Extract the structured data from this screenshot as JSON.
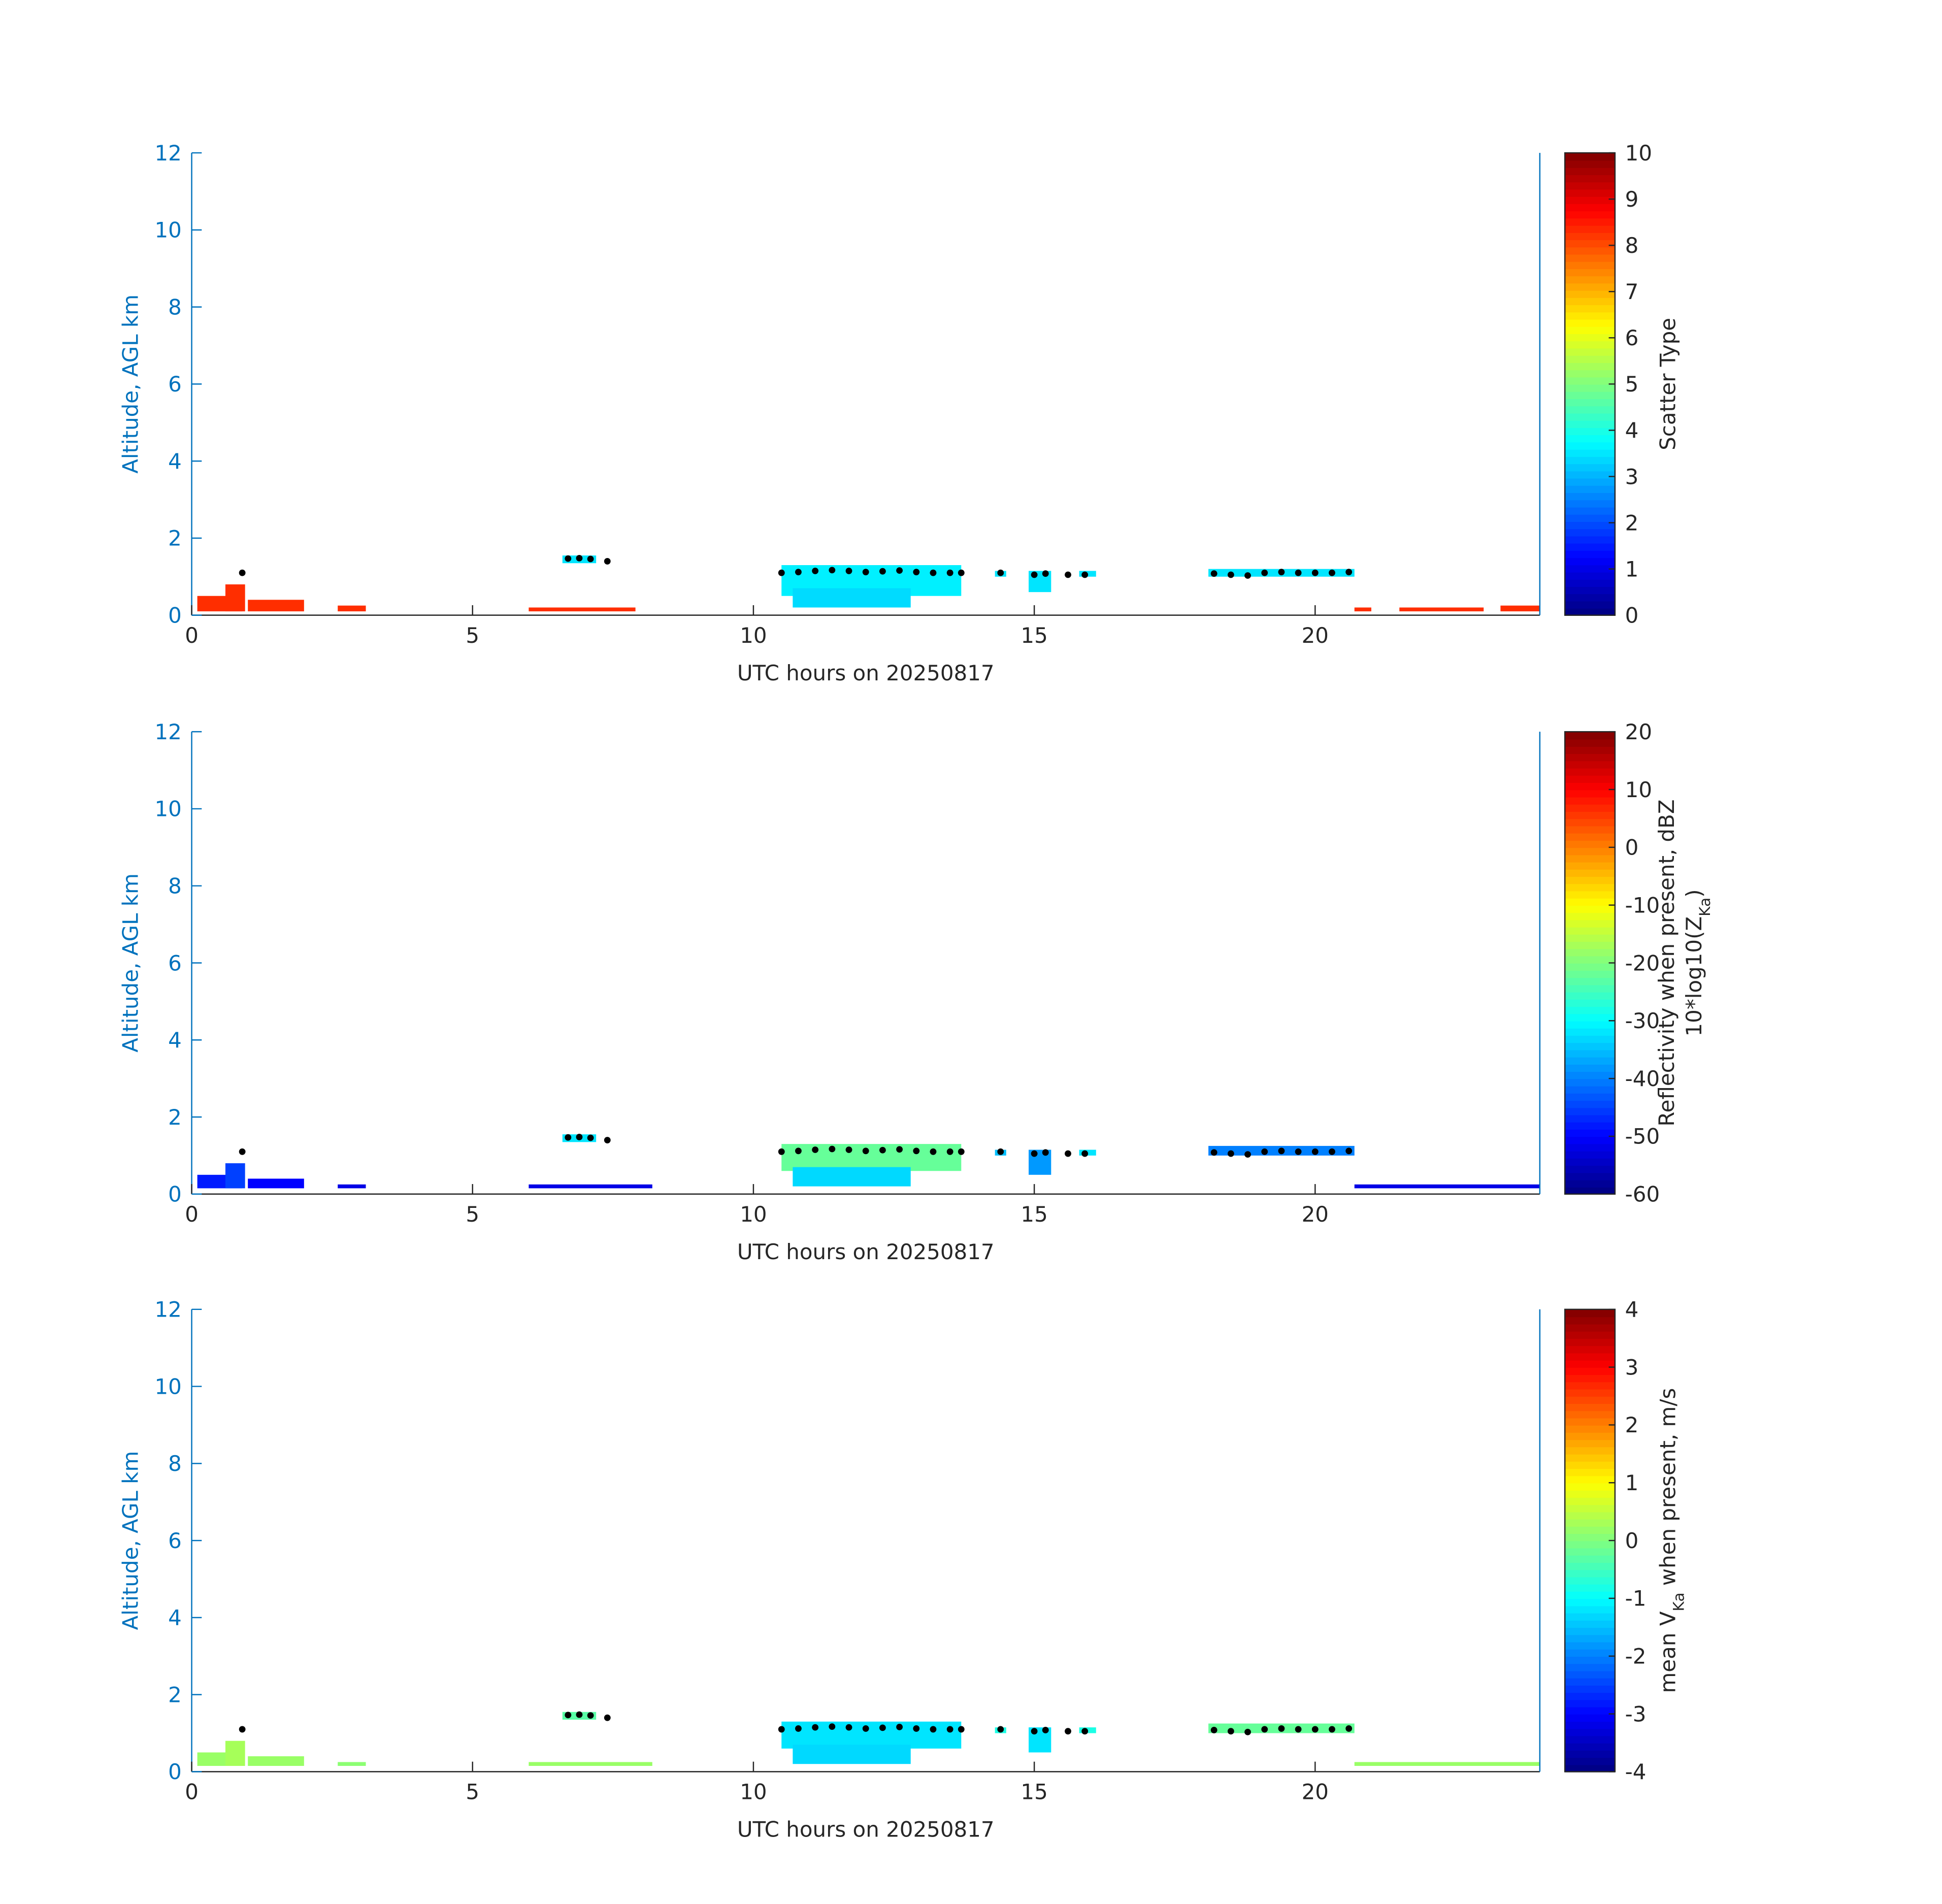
{
  "chart_data": [
    {
      "type": "heatmap",
      "xlabel": "UTC hours on 20250817",
      "ylabel": "Altitude, AGL km",
      "xlim": [
        0,
        24
      ],
      "xticks": [
        0,
        5,
        10,
        15,
        20
      ],
      "ylim": [
        0,
        12
      ],
      "yticks": [
        0,
        2,
        4,
        6,
        8,
        10,
        12
      ],
      "clim": [
        0,
        10
      ],
      "cticks": [
        0,
        1,
        2,
        3,
        4,
        5,
        6,
        7,
        8,
        9,
        10
      ],
      "colormap": "jet",
      "colorbar_label": [
        [
          "Scatter Type"
        ]
      ],
      "patches": [
        {
          "x": [
            0.1,
            0.9
          ],
          "y": [
            0.1,
            0.5
          ],
          "value": 8.3
        },
        {
          "x": [
            0.6,
            0.95
          ],
          "y": [
            0.1,
            0.8
          ],
          "value": 8.3
        },
        {
          "x": [
            1.0,
            2.0
          ],
          "y": [
            0.1,
            0.4
          ],
          "value": 8.3
        },
        {
          "x": [
            2.6,
            3.1
          ],
          "y": [
            0.1,
            0.25
          ],
          "value": 8.3
        },
        {
          "x": [
            6.0,
            7.9
          ],
          "y": [
            0.1,
            0.2
          ],
          "value": 8.3
        },
        {
          "x": [
            6.6,
            7.2
          ],
          "y": [
            1.35,
            1.55
          ],
          "value": 3.5
        },
        {
          "x": [
            10.5,
            13.7
          ],
          "y": [
            0.5,
            1.3
          ],
          "value": 3.6
        },
        {
          "x": [
            10.7,
            12.8
          ],
          "y": [
            0.2,
            0.7
          ],
          "value": 3.4
        },
        {
          "x": [
            14.3,
            14.5
          ],
          "y": [
            1.0,
            1.15
          ],
          "value": 3.5
        },
        {
          "x": [
            14.9,
            15.3
          ],
          "y": [
            0.6,
            1.15
          ],
          "value": 3.5
        },
        {
          "x": [
            15.8,
            16.1
          ],
          "y": [
            1.0,
            1.15
          ],
          "value": 3.5
        },
        {
          "x": [
            18.1,
            20.7
          ],
          "y": [
            1.0,
            1.2
          ],
          "value": 3.5
        },
        {
          "x": [
            20.7,
            21.0
          ],
          "y": [
            0.1,
            0.2
          ],
          "value": 8.3
        },
        {
          "x": [
            21.5,
            23.0
          ],
          "y": [
            0.1,
            0.2
          ],
          "value": 8.3
        },
        {
          "x": [
            23.3,
            24.0
          ],
          "y": [
            0.1,
            0.25
          ],
          "value": 8.3
        }
      ],
      "cloud_base": {
        "x": [
          0.9,
          6.7,
          6.9,
          7.1,
          7.4,
          10.5,
          10.8,
          11.1,
          11.4,
          11.7,
          12.0,
          12.3,
          12.6,
          12.9,
          13.2,
          13.5,
          13.7,
          14.4,
          15.0,
          15.2,
          15.6,
          15.9,
          18.2,
          18.5,
          18.8,
          19.1,
          19.4,
          19.7,
          20.0,
          20.3,
          20.6
        ],
        "values": [
          1.1,
          1.47,
          1.48,
          1.46,
          1.4,
          1.1,
          1.12,
          1.15,
          1.17,
          1.15,
          1.12,
          1.14,
          1.16,
          1.12,
          1.1,
          1.1,
          1.1,
          1.1,
          1.05,
          1.08,
          1.05,
          1.05,
          1.08,
          1.05,
          1.03,
          1.1,
          1.12,
          1.1,
          1.1,
          1.1,
          1.12
        ]
      }
    },
    {
      "type": "heatmap",
      "xlabel": "UTC hours on 20250817",
      "ylabel": "Altitude, AGL km",
      "xlim": [
        0,
        24
      ],
      "xticks": [
        0,
        5,
        10,
        15,
        20
      ],
      "ylim": [
        0,
        12
      ],
      "yticks": [
        0,
        2,
        4,
        6,
        8,
        10,
        12
      ],
      "clim": [
        -60,
        20
      ],
      "cticks": [
        -60,
        -50,
        -40,
        -30,
        -20,
        -10,
        0,
        10,
        20
      ],
      "colormap": "jet",
      "colorbar_label": [
        [
          "Reflectivity when present, dBZ"
        ],
        [
          "10*log10(Z",
          {
            "text": "Ka",
            "sub": true
          },
          ")"
        ]
      ],
      "patches": [
        {
          "x": [
            0.1,
            0.9
          ],
          "y": [
            0.15,
            0.5
          ],
          "value": -48
        },
        {
          "x": [
            0.6,
            0.95
          ],
          "y": [
            0.15,
            0.8
          ],
          "value": -45
        },
        {
          "x": [
            1.0,
            2.0
          ],
          "y": [
            0.15,
            0.4
          ],
          "value": -50
        },
        {
          "x": [
            2.6,
            3.1
          ],
          "y": [
            0.15,
            0.25
          ],
          "value": -52
        },
        {
          "x": [
            6.0,
            8.2
          ],
          "y": [
            0.15,
            0.25
          ],
          "value": -52
        },
        {
          "x": [
            6.6,
            7.2
          ],
          "y": [
            1.35,
            1.55
          ],
          "value": -32
        },
        {
          "x": [
            10.5,
            13.7
          ],
          "y": [
            0.6,
            1.3
          ],
          "value": -22
        },
        {
          "x": [
            10.7,
            12.8
          ],
          "y": [
            0.2,
            0.7
          ],
          "value": -33
        },
        {
          "x": [
            14.3,
            14.5
          ],
          "y": [
            1.0,
            1.15
          ],
          "value": -35
        },
        {
          "x": [
            14.9,
            15.3
          ],
          "y": [
            0.5,
            1.15
          ],
          "value": -38
        },
        {
          "x": [
            15.8,
            16.1
          ],
          "y": [
            1.0,
            1.15
          ],
          "value": -32
        },
        {
          "x": [
            18.1,
            20.7
          ],
          "y": [
            1.0,
            1.25
          ],
          "value": -40
        },
        {
          "x": [
            20.7,
            24.0
          ],
          "y": [
            0.15,
            0.25
          ],
          "value": -52
        }
      ],
      "cloud_base": {
        "x": [
          0.9,
          6.7,
          6.9,
          7.1,
          7.4,
          10.5,
          10.8,
          11.1,
          11.4,
          11.7,
          12.0,
          12.3,
          12.6,
          12.9,
          13.2,
          13.5,
          13.7,
          14.4,
          15.0,
          15.2,
          15.6,
          15.9,
          18.2,
          18.5,
          18.8,
          19.1,
          19.4,
          19.7,
          20.0,
          20.3,
          20.6
        ],
        "values": [
          1.1,
          1.47,
          1.48,
          1.46,
          1.4,
          1.1,
          1.12,
          1.15,
          1.17,
          1.15,
          1.12,
          1.14,
          1.16,
          1.12,
          1.1,
          1.1,
          1.1,
          1.1,
          1.05,
          1.08,
          1.05,
          1.05,
          1.08,
          1.05,
          1.03,
          1.1,
          1.12,
          1.1,
          1.1,
          1.1,
          1.12
        ]
      }
    },
    {
      "type": "heatmap",
      "xlabel": "UTC hours on 20250817",
      "ylabel": "Altitude, AGL km",
      "xlim": [
        0,
        24
      ],
      "xticks": [
        0,
        5,
        10,
        15,
        20
      ],
      "ylim": [
        0,
        12
      ],
      "yticks": [
        0,
        2,
        4,
        6,
        8,
        10,
        12
      ],
      "clim": [
        -4,
        4
      ],
      "cticks": [
        -4,
        -3,
        -2,
        -1,
        0,
        1,
        2,
        3,
        4
      ],
      "colormap": "jet",
      "colorbar_label": [
        [
          "mean V",
          {
            "text": "Ka",
            "sub": true
          },
          " when present, m/s"
        ]
      ],
      "patches": [
        {
          "x": [
            0.1,
            0.9
          ],
          "y": [
            0.15,
            0.5
          ],
          "value": 0.2
        },
        {
          "x": [
            0.6,
            0.95
          ],
          "y": [
            0.15,
            0.8
          ],
          "value": 0.3
        },
        {
          "x": [
            1.0,
            2.0
          ],
          "y": [
            0.15,
            0.4
          ],
          "value": 0.2
        },
        {
          "x": [
            2.6,
            3.1
          ],
          "y": [
            0.15,
            0.25
          ],
          "value": 0.1
        },
        {
          "x": [
            6.0,
            8.2
          ],
          "y": [
            0.15,
            0.25
          ],
          "value": 0.2
        },
        {
          "x": [
            6.6,
            7.2
          ],
          "y": [
            1.35,
            1.55
          ],
          "value": -0.3
        },
        {
          "x": [
            10.5,
            13.7
          ],
          "y": [
            0.6,
            1.3
          ],
          "value": -1.2
        },
        {
          "x": [
            10.7,
            12.8
          ],
          "y": [
            0.2,
            0.7
          ],
          "value": -1.3
        },
        {
          "x": [
            14.3,
            14.5
          ],
          "y": [
            1.0,
            1.15
          ],
          "value": -0.8
        },
        {
          "x": [
            14.9,
            15.3
          ],
          "y": [
            0.5,
            1.15
          ],
          "value": -1.2
        },
        {
          "x": [
            15.8,
            16.1
          ],
          "y": [
            1.0,
            1.15
          ],
          "value": -0.8
        },
        {
          "x": [
            18.1,
            20.7
          ],
          "y": [
            1.0,
            1.25
          ],
          "value": -0.2
        },
        {
          "x": [
            20.7,
            24.0
          ],
          "y": [
            0.15,
            0.25
          ],
          "value": 0.2
        }
      ],
      "cloud_base": {
        "x": [
          0.9,
          6.7,
          6.9,
          7.1,
          7.4,
          10.5,
          10.8,
          11.1,
          11.4,
          11.7,
          12.0,
          12.3,
          12.6,
          12.9,
          13.2,
          13.5,
          13.7,
          14.4,
          15.0,
          15.2,
          15.6,
          15.9,
          18.2,
          18.5,
          18.8,
          19.1,
          19.4,
          19.7,
          20.0,
          20.3,
          20.6
        ],
        "values": [
          1.1,
          1.47,
          1.48,
          1.46,
          1.4,
          1.1,
          1.12,
          1.15,
          1.17,
          1.15,
          1.12,
          1.14,
          1.16,
          1.12,
          1.1,
          1.1,
          1.1,
          1.1,
          1.05,
          1.08,
          1.05,
          1.05,
          1.08,
          1.05,
          1.03,
          1.1,
          1.12,
          1.1,
          1.1,
          1.1,
          1.12
        ]
      }
    }
  ]
}
